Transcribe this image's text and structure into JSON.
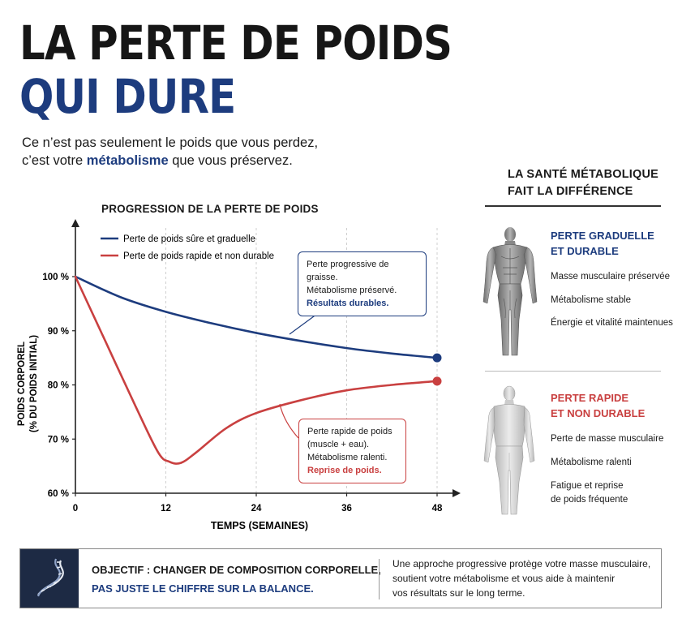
{
  "header": {
    "title_line1": "LA PERTE DE POIDS",
    "title_line2": "QUI DURE",
    "subtitle_line1": "Ce n’est pas seulement le poids que vous perdez,",
    "subtitle_line2_pre": "c’est votre ",
    "subtitle_line2_bold": "métabolisme",
    "subtitle_line2_post": " que vous préservez."
  },
  "chart_data": {
    "type": "line",
    "title": "PROGRESSION DE LA PERTE DE POIDS",
    "xlabel": "TEMPS (SEMAINES)",
    "ylabel_line1": "POIDS CORPOREL",
    "ylabel_line2": "(% DU POIDS INITIAL)",
    "xlim": [
      0,
      48
    ],
    "ylim": [
      60,
      100
    ],
    "x_ticks": [
      0,
      12,
      24,
      36,
      48
    ],
    "y_ticks": [
      60,
      70,
      80,
      90,
      100
    ],
    "y_tick_labels": [
      "60 %",
      "70 %",
      "80 %",
      "90 %",
      "100 %"
    ],
    "grid": "vertical dashed",
    "legend_position": "top-left",
    "series": [
      {
        "name": "Perte de poids sûre et graduelle",
        "color": "#1d3c7e",
        "x": [
          0,
          6,
          12,
          18,
          24,
          30,
          36,
          42,
          48
        ],
        "y": [
          100,
          96.2,
          93.5,
          91.4,
          89.6,
          88.1,
          86.8,
          85.8,
          85
        ]
      },
      {
        "name": "Perte de poids rapide et non durable",
        "color": "#c94040",
        "x": [
          0,
          4,
          8,
          11,
          12.5,
          14,
          16,
          20,
          24,
          30,
          36,
          42,
          48
        ],
        "y": [
          100,
          88,
          76,
          67.5,
          65.8,
          65.6,
          67.5,
          72,
          74.8,
          77.2,
          79,
          80,
          80.7
        ]
      }
    ],
    "annotations": [
      {
        "line1": "Perte progressive de graisse.",
        "line2": "Métabolisme préservé.",
        "highlight": "Résultats durables."
      },
      {
        "line1": "Perte rapide de poids",
        "line2": "(muscle + eau).",
        "line3": "Métabolisme ralenti.",
        "highlight": "Reprise de poids."
      }
    ]
  },
  "sidebar": {
    "title_line1": "LA SANTÉ MÉTABOLIQUE",
    "title_line2": "FAIT LA DIFFÉRENCE",
    "good": {
      "heading_line1": "PERTE GRADUELLE",
      "heading_line2": "ET DURABLE",
      "items": [
        "Masse musculaire préservée",
        "Métabolisme stable",
        "Énergie et vitalité maintenues"
      ]
    },
    "bad": {
      "heading_line1": "PERTE RAPIDE",
      "heading_line2": "ET NON DURABLE",
      "items": [
        "Perte de masse musculaire",
        "Métabolisme ralenti",
        "Fatigue et reprise",
        "de poids fréquente"
      ]
    }
  },
  "banner": {
    "line1": "OBJECTIF : CHANGER DE COMPOSITION CORPORELLE,",
    "line2": "PAS JUSTE LE CHIFFRE SUR LA BALANCE.",
    "desc_line1": "Une approche progressive protège votre masse musculaire,",
    "desc_line2": "soutient votre métabolisme et vous aide à maintenir",
    "desc_line3": "vos résultats sur le long terme."
  },
  "colors": {
    "navy": "#1d3c7e",
    "red": "#c94040",
    "icon_bg": "#1d2a44"
  }
}
